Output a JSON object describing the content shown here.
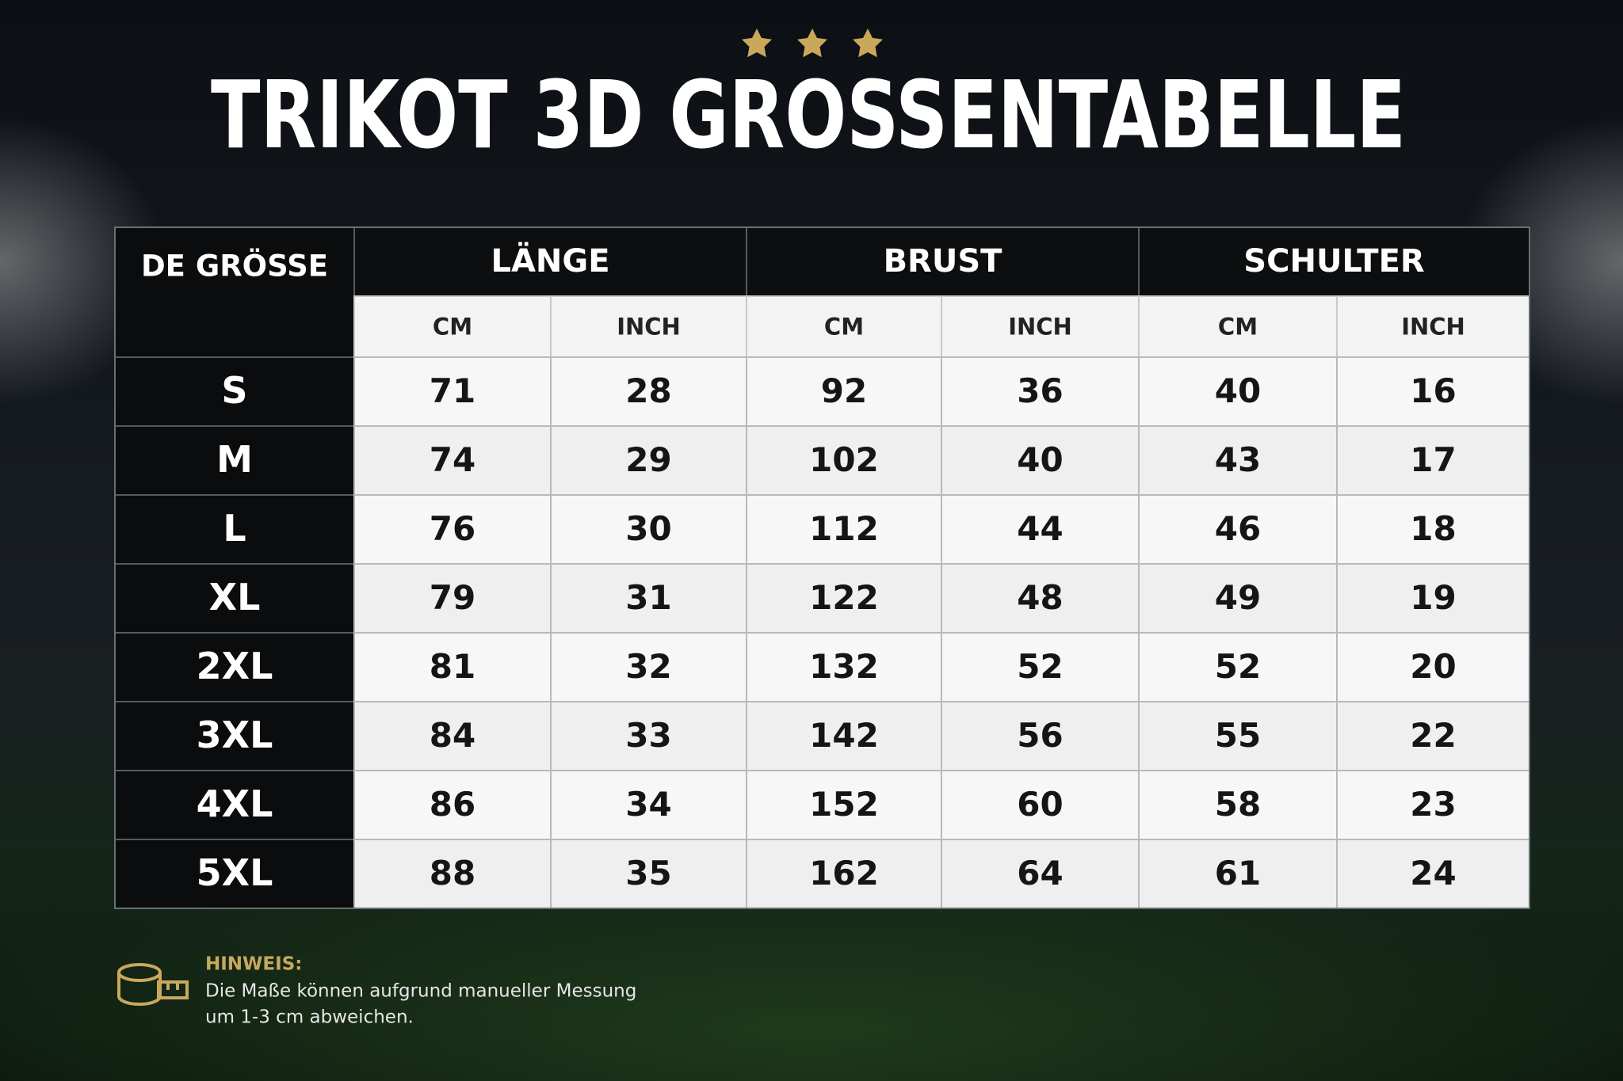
{
  "header": {
    "title": "TRIKOT 3D GROSSENTABELLE"
  },
  "table": {
    "corner": "DE GRÖSSE",
    "groups": [
      "LÄNGE",
      "BRUST",
      "SCHULTER"
    ],
    "units": [
      "CM",
      "INCH",
      "CM",
      "INCH",
      "CM",
      "INCH"
    ],
    "rows": [
      {
        "size": "S",
        "values": [
          71,
          28,
          92,
          36,
          40,
          16
        ]
      },
      {
        "size": "M",
        "values": [
          74,
          29,
          102,
          40,
          43,
          17
        ]
      },
      {
        "size": "L",
        "values": [
          76,
          30,
          112,
          44,
          46,
          18
        ]
      },
      {
        "size": "XL",
        "values": [
          79,
          31,
          122,
          48,
          49,
          19
        ]
      },
      {
        "size": "2XL",
        "values": [
          81,
          32,
          132,
          52,
          52,
          20
        ]
      },
      {
        "size": "3XL",
        "values": [
          84,
          33,
          142,
          56,
          55,
          22
        ]
      },
      {
        "size": "4XL",
        "values": [
          86,
          34,
          152,
          60,
          58,
          23
        ]
      },
      {
        "size": "5XL",
        "values": [
          88,
          35,
          162,
          64,
          61,
          24
        ]
      }
    ]
  },
  "note": {
    "label": "HINWEIS:",
    "lines": [
      "Die Maße können aufgrund manueller Messung",
      "um 1-3 cm abweichen."
    ]
  }
}
